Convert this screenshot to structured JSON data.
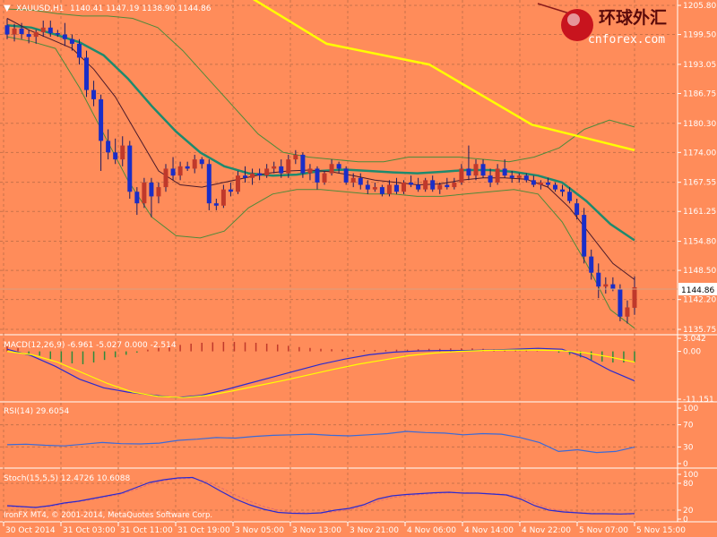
{
  "header": {
    "symbol": "XAUUSD,H1",
    "ohlc": "1140.41 1147.19 1138.90 1144.86",
    "current_price": "1144.86"
  },
  "watermark": {
    "cn_text": "环球外汇",
    "site": "cnforex.com"
  },
  "copyright": "IronFX MT4, © 2001-2014, MetaQuotes Software Corp.",
  "colors": {
    "background": "#ff8c5a",
    "bull_body": "#c0392b",
    "bear_body": "#1a2ec8",
    "ma_yellow": "#ffff00",
    "ma_teal": "#1e8a6e",
    "bollinger": "#4f8a3a",
    "ma_dark": "#4a1a2a",
    "indicator_blue": "#2a2ad0",
    "signal_yellow": "#ffff00"
  },
  "chart_data": [
    {
      "type": "candlestick",
      "title": "XAUUSD,H1",
      "ylim": [
        1135.75,
        1205.8
      ],
      "yticks": [
        "1205.80",
        "1199.50",
        "1193.05",
        "1186.75",
        "1180.30",
        "1174.00",
        "1167.55",
        "1161.25",
        "1154.80",
        "1148.50",
        "1142.20",
        "1135.75"
      ],
      "xticks": [
        "30 Oct 2014",
        "31 Oct 03:00",
        "31 Oct 11:00",
        "31 Oct 19:00",
        "3 Nov 05:00",
        "3 Nov 13:00",
        "3 Nov 21:00",
        "4 Nov 06:00",
        "4 Nov 14:00",
        "4 Nov 22:00",
        "5 Nov 07:00",
        "5 Nov 15:00"
      ],
      "candles": [
        {
          "o": 1201.5,
          "h": 1203.0,
          "l": 1198.5,
          "c": 1199.5
        },
        {
          "o": 1199.5,
          "h": 1201.8,
          "l": 1198.0,
          "c": 1200.8
        },
        {
          "o": 1200.8,
          "h": 1202.0,
          "l": 1198.5,
          "c": 1199.6
        },
        {
          "o": 1199.6,
          "h": 1200.5,
          "l": 1197.6,
          "c": 1199.0
        },
        {
          "o": 1199.0,
          "h": 1200.5,
          "l": 1197.5,
          "c": 1200.0
        },
        {
          "o": 1200.0,
          "h": 1202.5,
          "l": 1199.0,
          "c": 1201.0
        },
        {
          "o": 1201.0,
          "h": 1202.5,
          "l": 1199.0,
          "c": 1199.8
        },
        {
          "o": 1199.8,
          "h": 1200.5,
          "l": 1199.0,
          "c": 1199.5
        },
        {
          "o": 1199.5,
          "h": 1202.0,
          "l": 1197.0,
          "c": 1198.5
        },
        {
          "o": 1198.5,
          "h": 1199.5,
          "l": 1196.0,
          "c": 1197.5
        },
        {
          "o": 1197.5,
          "h": 1198.5,
          "l": 1193.0,
          "c": 1194.5
        },
        {
          "o": 1194.5,
          "h": 1196.0,
          "l": 1186.0,
          "c": 1187.5
        },
        {
          "o": 1187.5,
          "h": 1189.5,
          "l": 1184.0,
          "c": 1185.5
        },
        {
          "o": 1185.5,
          "h": 1186.5,
          "l": 1170.0,
          "c": 1176.5
        },
        {
          "o": 1176.5,
          "h": 1179.0,
          "l": 1172.5,
          "c": 1174.0
        },
        {
          "o": 1174.0,
          "h": 1177.0,
          "l": 1171.5,
          "c": 1172.5
        },
        {
          "o": 1172.5,
          "h": 1177.5,
          "l": 1171.0,
          "c": 1175.5
        },
        {
          "o": 1175.5,
          "h": 1176.5,
          "l": 1164.0,
          "c": 1165.5
        },
        {
          "o": 1165.5,
          "h": 1166.5,
          "l": 1160.5,
          "c": 1163.0
        },
        {
          "o": 1163.0,
          "h": 1168.5,
          "l": 1162.0,
          "c": 1167.5
        },
        {
          "o": 1167.5,
          "h": 1168.5,
          "l": 1160.0,
          "c": 1164.5
        },
        {
          "o": 1164.5,
          "h": 1167.5,
          "l": 1163.0,
          "c": 1166.5
        },
        {
          "o": 1166.5,
          "h": 1171.5,
          "l": 1165.5,
          "c": 1170.5
        },
        {
          "o": 1170.5,
          "h": 1173.0,
          "l": 1168.0,
          "c": 1169.0
        },
        {
          "o": 1169.0,
          "h": 1172.0,
          "l": 1168.0,
          "c": 1171.0
        },
        {
          "o": 1171.0,
          "h": 1172.0,
          "l": 1170.0,
          "c": 1170.5
        },
        {
          "o": 1170.5,
          "h": 1173.5,
          "l": 1169.5,
          "c": 1172.5
        },
        {
          "o": 1172.5,
          "h": 1173.0,
          "l": 1170.5,
          "c": 1171.5
        },
        {
          "o": 1171.5,
          "h": 1172.5,
          "l": 1161.5,
          "c": 1163.0
        },
        {
          "o": 1163.0,
          "h": 1164.0,
          "l": 1161.5,
          "c": 1162.5
        },
        {
          "o": 1162.5,
          "h": 1167.0,
          "l": 1162.0,
          "c": 1166.0
        },
        {
          "o": 1166.0,
          "h": 1167.5,
          "l": 1164.5,
          "c": 1165.5
        },
        {
          "o": 1165.5,
          "h": 1170.0,
          "l": 1165.0,
          "c": 1169.0
        },
        {
          "o": 1169.0,
          "h": 1171.0,
          "l": 1167.5,
          "c": 1168.5
        },
        {
          "o": 1168.5,
          "h": 1170.5,
          "l": 1167.0,
          "c": 1169.5
        },
        {
          "o": 1169.5,
          "h": 1170.5,
          "l": 1168.0,
          "c": 1169.0
        },
        {
          "o": 1169.0,
          "h": 1171.5,
          "l": 1168.5,
          "c": 1170.5
        },
        {
          "o": 1170.5,
          "h": 1172.0,
          "l": 1169.5,
          "c": 1171.0
        },
        {
          "o": 1171.0,
          "h": 1172.5,
          "l": 1168.5,
          "c": 1169.5
        },
        {
          "o": 1169.5,
          "h": 1173.5,
          "l": 1168.5,
          "c": 1172.5
        },
        {
          "o": 1172.5,
          "h": 1174.5,
          "l": 1171.5,
          "c": 1173.5
        },
        {
          "o": 1173.5,
          "h": 1174.0,
          "l": 1168.5,
          "c": 1169.5
        },
        {
          "o": 1169.5,
          "h": 1171.5,
          "l": 1168.0,
          "c": 1170.5
        },
        {
          "o": 1170.5,
          "h": 1171.0,
          "l": 1166.0,
          "c": 1167.5
        },
        {
          "o": 1167.5,
          "h": 1170.0,
          "l": 1167.0,
          "c": 1169.5
        },
        {
          "o": 1169.5,
          "h": 1172.5,
          "l": 1169.0,
          "c": 1171.5
        },
        {
          "o": 1171.5,
          "h": 1172.0,
          "l": 1169.5,
          "c": 1170.5
        },
        {
          "o": 1170.5,
          "h": 1171.0,
          "l": 1167.0,
          "c": 1167.5
        },
        {
          "o": 1167.5,
          "h": 1169.5,
          "l": 1166.5,
          "c": 1168.5
        },
        {
          "o": 1168.5,
          "h": 1169.5,
          "l": 1166.0,
          "c": 1167.0
        },
        {
          "o": 1167.0,
          "h": 1168.0,
          "l": 1165.0,
          "c": 1166.0
        },
        {
          "o": 1166.0,
          "h": 1167.5,
          "l": 1165.5,
          "c": 1166.5
        },
        {
          "o": 1166.5,
          "h": 1167.0,
          "l": 1164.5,
          "c": 1165.0
        },
        {
          "o": 1165.0,
          "h": 1168.0,
          "l": 1164.5,
          "c": 1167.0
        },
        {
          "o": 1167.0,
          "h": 1168.5,
          "l": 1165.0,
          "c": 1165.5
        },
        {
          "o": 1165.5,
          "h": 1168.0,
          "l": 1165.0,
          "c": 1167.5
        },
        {
          "o": 1167.5,
          "h": 1169.0,
          "l": 1166.5,
          "c": 1167.0
        },
        {
          "o": 1167.0,
          "h": 1168.5,
          "l": 1165.5,
          "c": 1166.0
        },
        {
          "o": 1166.0,
          "h": 1168.5,
          "l": 1165.5,
          "c": 1168.0
        },
        {
          "o": 1168.0,
          "h": 1169.0,
          "l": 1165.5,
          "c": 1166.0
        },
        {
          "o": 1166.0,
          "h": 1167.5,
          "l": 1165.0,
          "c": 1167.0
        },
        {
          "o": 1167.0,
          "h": 1168.5,
          "l": 1166.0,
          "c": 1166.5
        },
        {
          "o": 1166.5,
          "h": 1168.5,
          "l": 1166.0,
          "c": 1167.5
        },
        {
          "o": 1167.5,
          "h": 1171.5,
          "l": 1167.0,
          "c": 1170.5
        },
        {
          "o": 1170.5,
          "h": 1175.5,
          "l": 1168.0,
          "c": 1169.0
        },
        {
          "o": 1169.0,
          "h": 1172.5,
          "l": 1168.0,
          "c": 1171.5
        },
        {
          "o": 1171.5,
          "h": 1172.5,
          "l": 1168.5,
          "c": 1169.0
        },
        {
          "o": 1169.0,
          "h": 1170.5,
          "l": 1166.5,
          "c": 1167.5
        },
        {
          "o": 1167.5,
          "h": 1171.5,
          "l": 1167.0,
          "c": 1170.5
        },
        {
          "o": 1170.5,
          "h": 1172.5,
          "l": 1168.5,
          "c": 1169.0
        },
        {
          "o": 1169.0,
          "h": 1170.0,
          "l": 1167.5,
          "c": 1168.5
        },
        {
          "o": 1168.5,
          "h": 1169.5,
          "l": 1167.5,
          "c": 1169.0
        },
        {
          "o": 1169.0,
          "h": 1169.5,
          "l": 1167.5,
          "c": 1168.0
        },
        {
          "o": 1168.0,
          "h": 1169.0,
          "l": 1166.5,
          "c": 1167.0
        },
        {
          "o": 1167.0,
          "h": 1168.0,
          "l": 1166.0,
          "c": 1167.5
        },
        {
          "o": 1167.5,
          "h": 1168.5,
          "l": 1166.5,
          "c": 1167.0
        },
        {
          "o": 1167.0,
          "h": 1167.5,
          "l": 1165.5,
          "c": 1166.0
        },
        {
          "o": 1166.0,
          "h": 1167.0,
          "l": 1164.5,
          "c": 1165.5
        },
        {
          "o": 1165.5,
          "h": 1166.5,
          "l": 1163.0,
          "c": 1163.5
        },
        {
          "o": 1163.0,
          "h": 1164.0,
          "l": 1159.5,
          "c": 1160.5
        },
        {
          "o": 1160.5,
          "h": 1162.0,
          "l": 1150.0,
          "c": 1151.5
        },
        {
          "o": 1151.5,
          "h": 1153.0,
          "l": 1146.5,
          "c": 1148.0
        },
        {
          "o": 1148.0,
          "h": 1150.0,
          "l": 1142.5,
          "c": 1145.0
        },
        {
          "o": 1145.0,
          "h": 1147.0,
          "l": 1143.5,
          "c": 1145.5
        },
        {
          "o": 1145.5,
          "h": 1147.0,
          "l": 1144.0,
          "c": 1144.5
        },
        {
          "o": 1144.5,
          "h": 1145.5,
          "l": 1137.5,
          "c": 1138.5
        },
        {
          "o": 1138.5,
          "h": 1142.0,
          "l": 1137.0,
          "c": 1140.5
        },
        {
          "o": 1140.41,
          "h": 1147.19,
          "l": 1138.9,
          "c": 1144.86
        }
      ],
      "ma_slow": [
        1211.0,
        1197.5,
        1193.0,
        1180.0,
        1174.5
      ],
      "ma_teal": [
        1201.5,
        1201.0,
        1199.5,
        1197.8,
        1195.0,
        1190.0,
        1184.0,
        1178.5,
        1174.0,
        1171.0,
        1169.5,
        1169.0,
        1169.2,
        1170.0,
        1170.3,
        1170.0,
        1169.7,
        1169.5,
        1169.8,
        1170.2,
        1170.2,
        1169.8,
        1169.0,
        1167.5,
        1163.5,
        1158.5,
        1155.0
      ],
      "ma_fast": [
        1203.0,
        1200.5,
        1198.5,
        1196.5,
        1192.0,
        1186.0,
        1178.0,
        1170.0,
        1167.0,
        1166.5,
        1167.5,
        1168.5,
        1169.5,
        1170.0,
        1170.2,
        1169.8,
        1169.0,
        1168.0,
        1167.5,
        1167.0,
        1167.2,
        1168.0,
        1168.5,
        1168.5,
        1168.2,
        1166.5,
        1162.0,
        1156.0,
        1150.0,
        1146.5
      ],
      "boll_upper": [
        1205.0,
        1204.8,
        1204.0,
        1203.5,
        1203.5,
        1203.0,
        1201.0,
        1196.0,
        1190.0,
        1184.0,
        1178.0,
        1174.0,
        1173.0,
        1172.5,
        1172.0,
        1172.0,
        1173.0,
        1173.0,
        1173.0,
        1172.5,
        1172.0,
        1173.0,
        1175.0,
        1179.0,
        1181.0,
        1179.5
      ],
      "boll_lower": [
        1199.0,
        1198.0,
        1196.5,
        1188.0,
        1178.0,
        1168.0,
        1160.0,
        1156.0,
        1155.5,
        1157.0,
        1162.0,
        1165.0,
        1166.0,
        1166.0,
        1165.5,
        1165.0,
        1165.0,
        1164.5,
        1164.5,
        1165.0,
        1165.5,
        1166.0,
        1165.0,
        1159.0,
        1150.0,
        1140.0,
        1136.0
      ]
    },
    {
      "type": "line",
      "title": "MACD(12,26,9) -6.961 -5.027 0.000 -2.514",
      "yticks": [
        "3.042",
        "0.00",
        "-11.151"
      ],
      "ylim": [
        -11.151,
        3.042
      ],
      "histogram": [
        1.2,
        0.8,
        -0.6,
        -1.0,
        -1.8,
        -2.5,
        -2.8,
        -3.0,
        -2.6,
        -2.0,
        -1.4,
        -0.8,
        -0.3,
        0.4,
        0.8,
        1.2,
        1.5,
        1.8,
        2.0,
        2.1,
        2.2,
        2.2,
        2.1,
        2.0,
        1.8,
        1.6,
        1.3,
        1.0,
        0.8,
        0.6,
        0.5,
        0.4,
        0.3,
        0.3,
        0.3,
        0.3,
        0.4,
        0.4,
        0.5,
        0.6,
        0.6,
        0.7,
        0.7,
        0.7,
        0.6,
        0.5,
        0.4,
        0.3,
        0.2,
        0.1,
        0.0,
        -0.3,
        -0.8,
        -1.4,
        -2.0,
        -2.4,
        -2.6,
        -2.6,
        -2.5
      ],
      "macd": [
        0.5,
        -1.0,
        -3.5,
        -6.5,
        -8.5,
        -9.5,
        -10.2,
        -10.8,
        -10.3,
        -9.0,
        -7.5,
        -6.0,
        -4.5,
        -3.0,
        -1.8,
        -0.8,
        -0.2,
        0.1,
        0.2,
        0.2,
        0.3,
        0.5,
        0.7,
        0.5,
        -1.5,
        -4.5,
        -6.9
      ],
      "signal": [
        0.0,
        -0.8,
        -2.5,
        -5.0,
        -7.5,
        -9.5,
        -10.5,
        -10.8,
        -10.3,
        -9.2,
        -8.0,
        -6.8,
        -5.5,
        -4.2,
        -3.0,
        -2.0,
        -1.0,
        -0.4,
        0.0,
        0.2,
        0.3,
        0.3,
        0.2,
        -0.3,
        -1.3,
        -2.5
      ]
    },
    {
      "type": "line",
      "title": "RSI(14) 29.6054",
      "yticks": [
        "100",
        "70",
        "30",
        "0"
      ],
      "ylim": [
        0,
        100
      ],
      "values": [
        34.0,
        35.0,
        33.0,
        32.0,
        35.0,
        38.0,
        36.0,
        35.5,
        37.0,
        42.0,
        44.0,
        47.0,
        46.0,
        49.0,
        51.0,
        52.0,
        53.0,
        51.0,
        50.0,
        52.0,
        54.0,
        58.0,
        56.0,
        55.0,
        52.0,
        54.0,
        53.0,
        47.0,
        38.0,
        22.0,
        25.0,
        20.0,
        22.0,
        29.6
      ]
    },
    {
      "type": "line",
      "title": "Stoch(15,5,5) 12.4726 10.6088",
      "yticks": [
        "100",
        "80",
        "20",
        "0"
      ],
      "ylim": [
        0,
        100
      ],
      "k": [
        30.0,
        28.0,
        26.0,
        30.0,
        36.0,
        40.0,
        46.0,
        52.0,
        58.0,
        70.0,
        82.0,
        88.0,
        92.0,
        93.0,
        80.0,
        62.0,
        45.0,
        32.0,
        22.0,
        15.0,
        13.0,
        12.5,
        14.0,
        20.0,
        24.0,
        32.0,
        45.0,
        52.0,
        55.0,
        57.0,
        59.0,
        60.0,
        58.0,
        58.0,
        56.0,
        54.0,
        45.0,
        30.0,
        20.0,
        16.0,
        14.0,
        12.0,
        12.0,
        11.5,
        12.4726
      ],
      "d": [
        28.0,
        27.0,
        27.0,
        28.0,
        34.0,
        39.0,
        44.0,
        50.0,
        56.0,
        66.0,
        78.0,
        86.0,
        90.0,
        91.0,
        84.0,
        70.0,
        54.0,
        40.0,
        28.0,
        20.0,
        16.0,
        14.0,
        13.0,
        17.0,
        21.0,
        28.0,
        40.0,
        48.0,
        52.0,
        55.0,
        57.0,
        59.0,
        59.0,
        58.0,
        57.0,
        55.0,
        50.0,
        36.0,
        24.0,
        18.0,
        15.0,
        13.0,
        12.0,
        11.0,
        10.6088
      ]
    }
  ]
}
